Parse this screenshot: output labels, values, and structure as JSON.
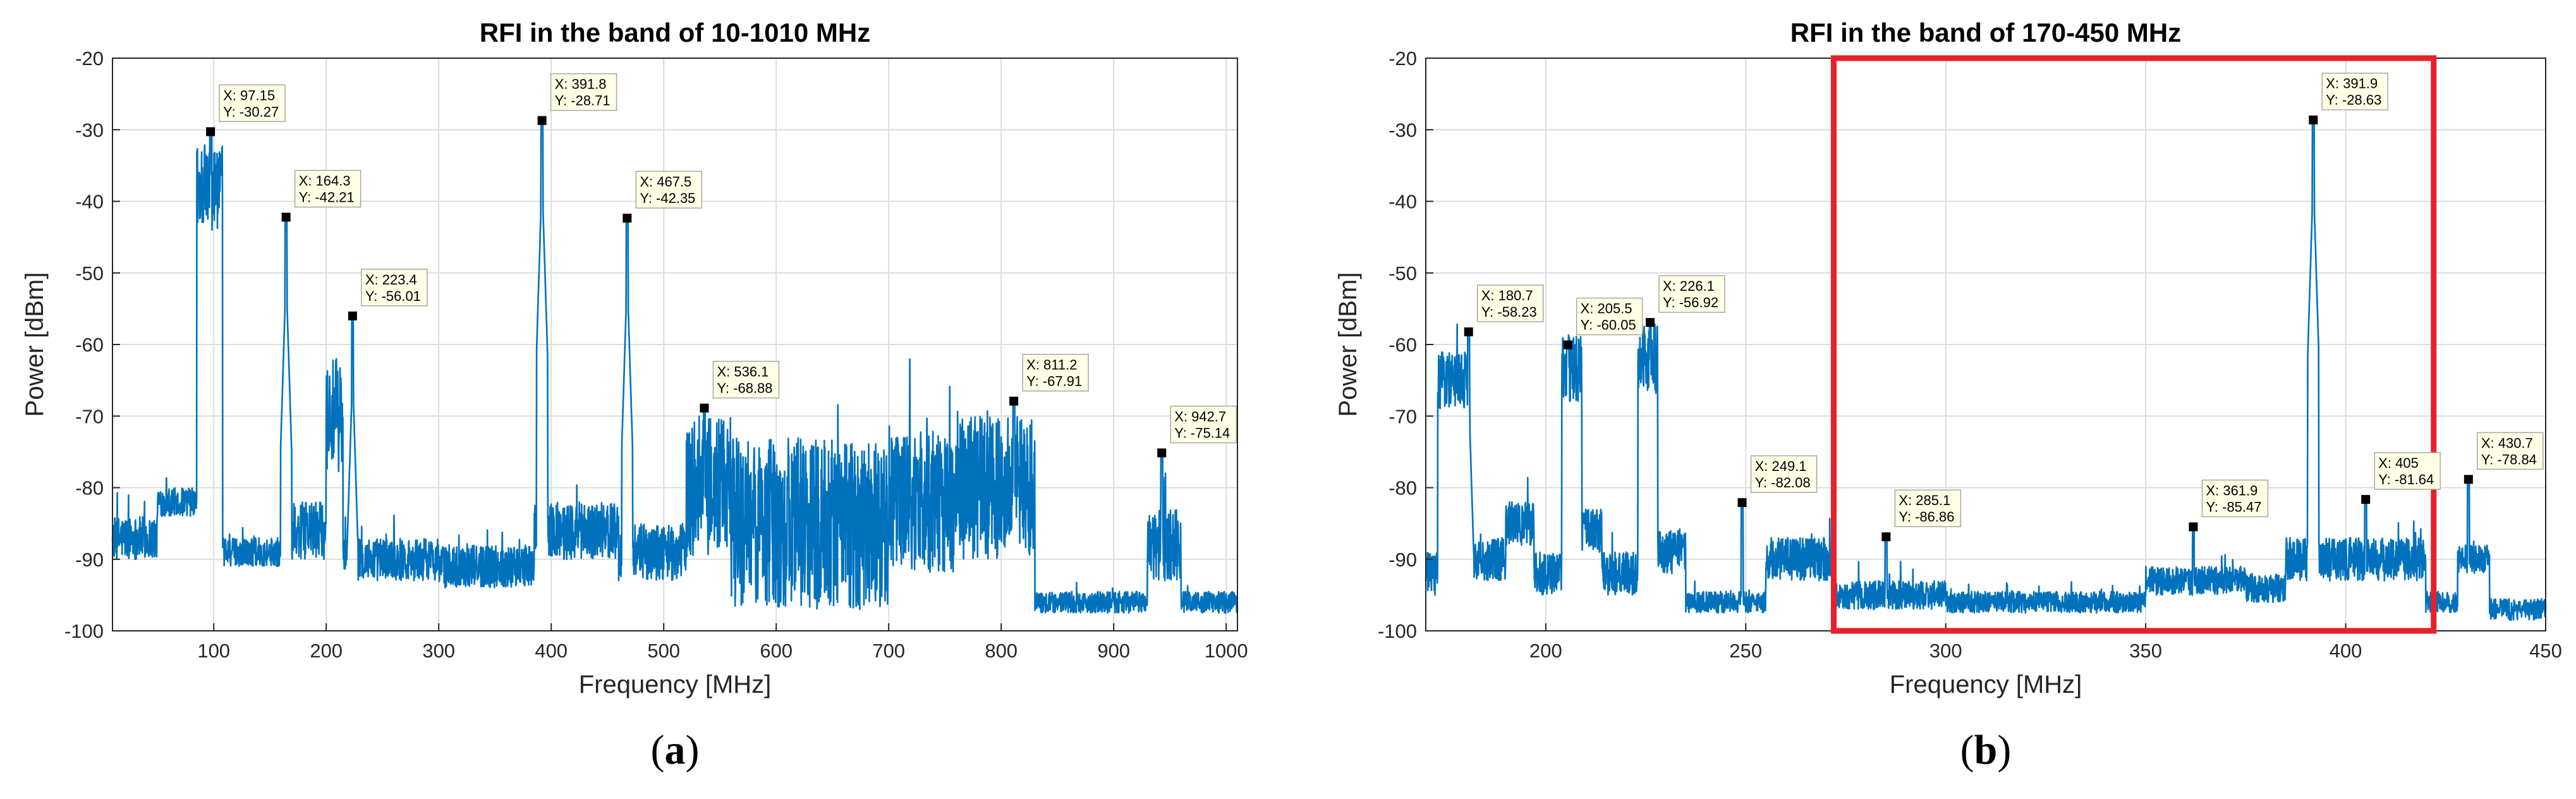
{
  "chart_data": [
    {
      "type": "line",
      "title": "RFI in the band of 10-1010 MHz",
      "xlabel": "Frequency [MHz]",
      "ylabel": "Power [dBm]",
      "xlim": [
        10,
        1010
      ],
      "ylim": [
        -100,
        -20
      ],
      "xticks": [
        100,
        200,
        300,
        400,
        500,
        600,
        700,
        800,
        900,
        1000
      ],
      "yticks": [
        -20,
        -30,
        -40,
        -50,
        -60,
        -70,
        -80,
        -90,
        -100
      ],
      "grid": true,
      "caption_letter": "a",
      "line_color": "#0072BD",
      "floor_segments": [
        [
          10,
          50,
          -87,
          3
        ],
        [
          50,
          85,
          -82,
          2
        ],
        [
          85,
          108,
          -38,
          6
        ],
        [
          108,
          170,
          -89,
          2
        ],
        [
          170,
          200,
          -86,
          4
        ],
        [
          200,
          215,
          -70,
          8
        ],
        [
          215,
          300,
          -90,
          3
        ],
        [
          300,
          385,
          -91,
          3
        ],
        [
          385,
          460,
          -86,
          4
        ],
        [
          460,
          520,
          -89,
          4
        ],
        [
          520,
          560,
          -80,
          10
        ],
        [
          560,
          700,
          -85,
          12
        ],
        [
          700,
          760,
          -82,
          10
        ],
        [
          760,
          830,
          -80,
          10
        ],
        [
          830,
          930,
          -96,
          1.5
        ],
        [
          930,
          960,
          -88,
          5
        ],
        [
          960,
          1010,
          -96,
          1.5
        ]
      ],
      "peaks": [
        {
          "x": 97.15,
          "y": -30.27
        },
        {
          "x": 164.3,
          "y": -42.21
        },
        {
          "x": 223.4,
          "y": -56.01
        },
        {
          "x": 391.8,
          "y": -28.71
        },
        {
          "x": 467.5,
          "y": -42.35
        },
        {
          "x": 536.1,
          "y": -68.88
        },
        {
          "x": 811.2,
          "y": -67.91
        },
        {
          "x": 942.7,
          "y": -75.14
        }
      ],
      "datatips": [
        {
          "x": 97.15,
          "y": -30.27,
          "xlabel": "X: 97.15",
          "ylabel": "Y: -30.27"
        },
        {
          "x": 164.3,
          "y": -42.21,
          "xlabel": "X: 164.3",
          "ylabel": "Y: -42.21"
        },
        {
          "x": 223.4,
          "y": -56.01,
          "xlabel": "X: 223.4",
          "ylabel": "Y: -56.01"
        },
        {
          "x": 391.8,
          "y": -28.71,
          "xlabel": "X: 391.8",
          "ylabel": "Y: -28.71"
        },
        {
          "x": 467.5,
          "y": -42.35,
          "xlabel": "X: 467.5",
          "ylabel": "Y: -42.35"
        },
        {
          "x": 536.1,
          "y": -68.88,
          "xlabel": "X: 536.1",
          "ylabel": "Y: -68.88"
        },
        {
          "x": 811.2,
          "y": -67.91,
          "xlabel": "X: 811.2",
          "ylabel": "Y: -67.91"
        },
        {
          "x": 942.7,
          "y": -75.14,
          "xlabel": "X: 942.7",
          "ylabel": "Y: -75.14"
        }
      ],
      "highlight": null
    },
    {
      "type": "line",
      "title": "RFI in the band of 170-450 MHz",
      "xlabel": "Frequency [MHz]",
      "ylabel": "Power [dBm]",
      "xlim": [
        170,
        450
      ],
      "ylim": [
        -100,
        -20
      ],
      "xticks": [
        200,
        250,
        300,
        350,
        400,
        450
      ],
      "yticks": [
        -20,
        -30,
        -40,
        -50,
        -60,
        -70,
        -80,
        -90,
        -100
      ],
      "grid": true,
      "caption_letter": "b",
      "line_color": "#0072BD",
      "floor_segments": [
        [
          170,
          173,
          -92,
          3
        ],
        [
          173,
          181,
          -65,
          4
        ],
        [
          181,
          190,
          -90,
          3
        ],
        [
          190,
          197,
          -85,
          3
        ],
        [
          197,
          204,
          -92,
          3
        ],
        [
          204,
          209,
          -63,
          5
        ],
        [
          209,
          214,
          -86,
          3
        ],
        [
          214,
          223,
          -92,
          3
        ],
        [
          223,
          228,
          -62,
          5
        ],
        [
          228,
          235,
          -89,
          3
        ],
        [
          235,
          255,
          -96,
          1.5
        ],
        [
          255,
          272,
          -90,
          3
        ],
        [
          272,
          300,
          -95,
          2
        ],
        [
          300,
          350,
          -96,
          1.5
        ],
        [
          350,
          375,
          -93,
          2
        ],
        [
          375,
          385,
          -94,
          2
        ],
        [
          385,
          420,
          -90,
          3
        ],
        [
          420,
          428,
          -96,
          1.5
        ],
        [
          428,
          436,
          -90,
          2
        ],
        [
          436,
          450,
          -97,
          1.5
        ]
      ],
      "peaks": [
        {
          "x": 180.7,
          "y": -58.23
        },
        {
          "x": 205.5,
          "y": -60.05
        },
        {
          "x": 226.1,
          "y": -56.92
        },
        {
          "x": 249.1,
          "y": -82.08
        },
        {
          "x": 285.1,
          "y": -86.86
        },
        {
          "x": 361.9,
          "y": -85.47
        },
        {
          "x": 391.9,
          "y": -28.63
        },
        {
          "x": 405,
          "y": -81.64
        },
        {
          "x": 430.7,
          "y": -78.84
        }
      ],
      "datatips": [
        {
          "x": 180.7,
          "y": -58.23,
          "xlabel": "X: 180.7",
          "ylabel": "Y: -58.23"
        },
        {
          "x": 205.5,
          "y": -60.05,
          "xlabel": "X: 205.5",
          "ylabel": "Y: -60.05"
        },
        {
          "x": 226.1,
          "y": -56.92,
          "xlabel": "X: 226.1",
          "ylabel": "Y: -56.92"
        },
        {
          "x": 249.1,
          "y": -82.08,
          "xlabel": "X: 249.1",
          "ylabel": "Y: -82.08"
        },
        {
          "x": 285.1,
          "y": -86.86,
          "xlabel": "X: 285.1",
          "ylabel": "Y: -86.86"
        },
        {
          "x": 361.9,
          "y": -85.47,
          "xlabel": "X: 361.9",
          "ylabel": "Y: -85.47"
        },
        {
          "x": 391.9,
          "y": -28.63,
          "xlabel": "X: 391.9",
          "ylabel": "Y: -28.63"
        },
        {
          "x": 405,
          "y": -81.64,
          "xlabel": "X: 405",
          "ylabel": "Y: -81.64"
        },
        {
          "x": 430.7,
          "y": -78.84,
          "xlabel": "X: 430.7",
          "ylabel": "Y: -78.84"
        }
      ],
      "highlight": {
        "x0": 272,
        "x1": 422,
        "y0": -100,
        "y1": -20,
        "color": "#E8202A"
      }
    }
  ]
}
